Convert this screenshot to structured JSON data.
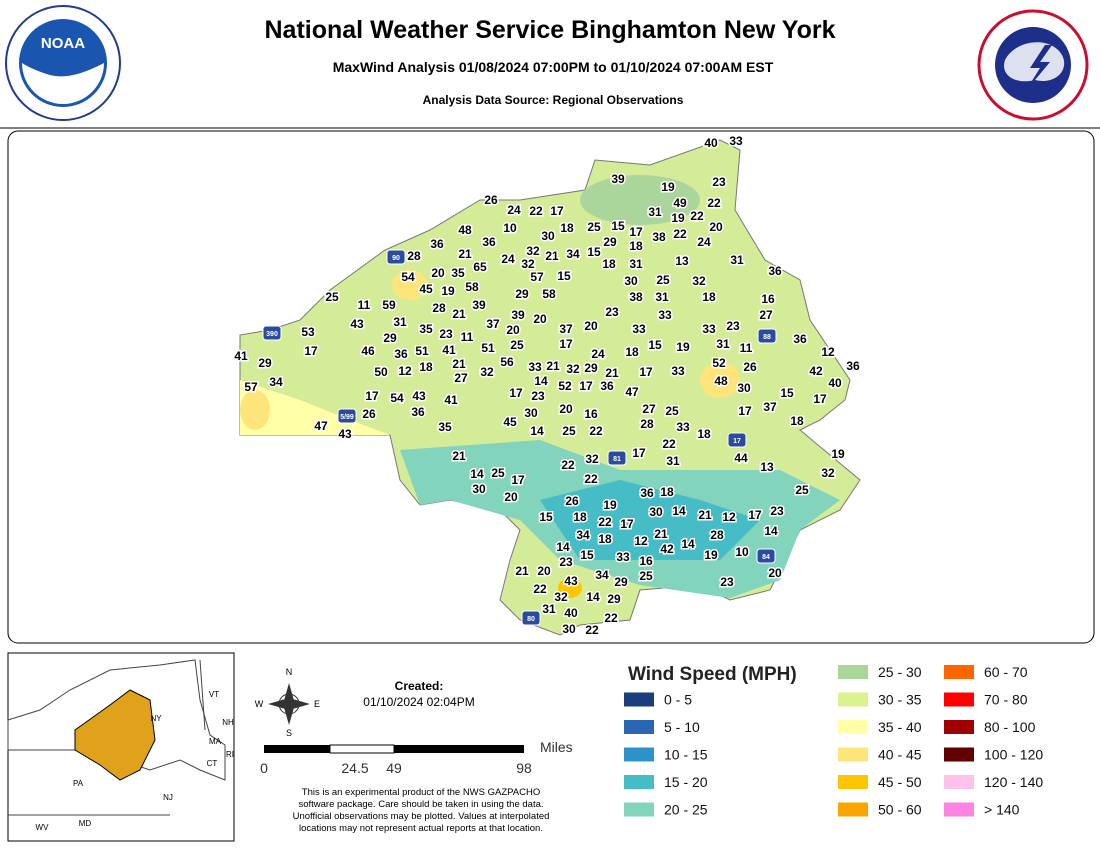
{
  "header": {
    "title": "National Weather Service Binghamton New York",
    "subtitle": "MaxWind Analysis 01/08/2024 07:00PM to 01/10/2024 07:00AM EST",
    "source": "Analysis Data Source: Regional Observations",
    "logo": "NOAA"
  },
  "map": {
    "stations": [
      40,
      33,
      39,
      19,
      23,
      26,
      24,
      22,
      17,
      49,
      22,
      31,
      19,
      22,
      48,
      10,
      18,
      25,
      15,
      17,
      38,
      22,
      20,
      36,
      30,
      24,
      32,
      21,
      34,
      15,
      29,
      18,
      28,
      36,
      24,
      21,
      32,
      18,
      31,
      13,
      31,
      36,
      54,
      20,
      35,
      65,
      57,
      15,
      30,
      25,
      32,
      25,
      45,
      19,
      58,
      29,
      58,
      38,
      31,
      18,
      16,
      11,
      59,
      28,
      21,
      39,
      23,
      33,
      27,
      43,
      31,
      35,
      23,
      11,
      37,
      39,
      20,
      20,
      37,
      20,
      33,
      33,
      23,
      53,
      29,
      41,
      51,
      25,
      17,
      18,
      15,
      19,
      31,
      11,
      36,
      12,
      17,
      46,
      36,
      51,
      21,
      56,
      33,
      21,
      32,
      29,
      24,
      21,
      17,
      33,
      52,
      26,
      42,
      36,
      41,
      29,
      50,
      12,
      18,
      27,
      32,
      14,
      52,
      17,
      36,
      47,
      48,
      30,
      40,
      57,
      34,
      17,
      54,
      43,
      41,
      17,
      23,
      15,
      17,
      37,
      17,
      27,
      25,
      28,
      33,
      18,
      18,
      36,
      26,
      20,
      16,
      30,
      45,
      35,
      47,
      43,
      14,
      25,
      22,
      22,
      17,
      31,
      19,
      32,
      21,
      32,
      22,
      22,
      44,
      13,
      14,
      25,
      17,
      30,
      20,
      25,
      36,
      18,
      26,
      19,
      30,
      14,
      21,
      12,
      17,
      23,
      15,
      18,
      22,
      17,
      14,
      34,
      18,
      12,
      21,
      42,
      14,
      28,
      14,
      15,
      33,
      19,
      10,
      16,
      21,
      20,
      23,
      34,
      29,
      25,
      20,
      23,
      43,
      22,
      32,
      14,
      29,
      31,
      40,
      22,
      30,
      22
    ],
    "highways": [
      "90",
      "390",
      "88",
      "17",
      "81",
      "84",
      "80",
      "5/99"
    ]
  },
  "inset": {
    "states": [
      "NY",
      "VT",
      "NH",
      "MA",
      "CT",
      "RI",
      "PA",
      "NJ",
      "MD",
      "WV"
    ]
  },
  "compass": [
    "N",
    "E",
    "S",
    "W"
  ],
  "created": {
    "label": "Created:",
    "date": "01/10/2024 02:04PM"
  },
  "scale": {
    "unit": "Miles",
    "ticks": [
      "0",
      "24.5",
      "49",
      "98"
    ]
  },
  "disclaimer": [
    "This is an experimental product of the NWS GAZPACHO",
    "software package. Care should be taken in using the data.",
    "Unofficial observations may be plotted. Values at interpolated",
    "locations may not represent actual reports at that location."
  ],
  "legend": {
    "title": "Wind Speed (MPH)",
    "items": [
      {
        "label": "0 - 5",
        "color": "#1b3f7e"
      },
      {
        "label": "5 - 10",
        "color": "#2b66b3"
      },
      {
        "label": "10 - 15",
        "color": "#2b93c8"
      },
      {
        "label": "15 - 20",
        "color": "#45bcc6"
      },
      {
        "label": "20 - 25",
        "color": "#83d4bc"
      },
      {
        "label": "25 - 30",
        "color": "#abd69b"
      },
      {
        "label": "30 - 35",
        "color": "#dcf28c"
      },
      {
        "label": "35 - 40",
        "color": "#ffffa8"
      },
      {
        "label": "40 - 45",
        "color": "#fde57c"
      },
      {
        "label": "45 - 50",
        "color": "#fdc600"
      },
      {
        "label": "50 - 60",
        "color": "#fba600"
      },
      {
        "label": "60 - 70",
        "color": "#ff6600"
      },
      {
        "label": "70 - 80",
        "color": "#ff0000"
      },
      {
        "label": "80 - 100",
        "color": "#a00000"
      },
      {
        "label": "100 - 120",
        "color": "#600000"
      },
      {
        "label": "120 - 140",
        "color": "#ffc2ea"
      },
      {
        "label": "> 140",
        "color": "#ff84e2"
      }
    ]
  }
}
